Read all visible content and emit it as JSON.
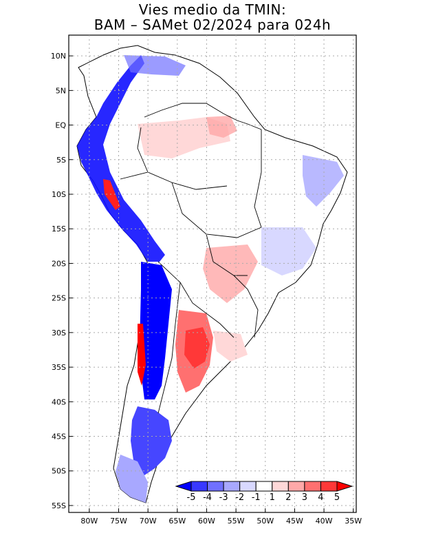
{
  "title_line1": "Vies medio da TMIN:",
  "title_line2": "BAM – SAMet 02/2024  para 024h",
  "lat_labels": [
    "10N",
    "5N",
    "EQ",
    "5S",
    "10S",
    "15S",
    "20S",
    "25S",
    "30S",
    "35S",
    "40S",
    "45S",
    "50S",
    "55S"
  ],
  "lon_labels": [
    "80W",
    "75W",
    "70W",
    "65W",
    "60W",
    "55W",
    "50W",
    "45W",
    "40W",
    "35W"
  ],
  "lat_values": [
    10,
    5,
    0,
    -5,
    -10,
    -15,
    -20,
    -25,
    -30,
    -35,
    -40,
    -45,
    -50,
    -55
  ],
  "lon_values": [
    -80,
    -75,
    -70,
    -65,
    -60,
    -55,
    -50,
    -45,
    -40,
    -35
  ],
  "map_extent": {
    "lon_min": -83.5,
    "lon_max": -34.5,
    "lat_min": -56,
    "lat_max": 13
  },
  "colorbar": {
    "labels": [
      "-5",
      "-4",
      "-3",
      "-2",
      "-1",
      "1",
      "2",
      "3",
      "4",
      "5"
    ],
    "colors": [
      "#0000ff",
      "#3838ff",
      "#7070ff",
      "#a8a8ff",
      "#d8d8ff",
      "#ffffff",
      "#ffd8d8",
      "#ffa8a8",
      "#ff7070",
      "#ff3838",
      "#ff0000"
    ]
  },
  "colors": {
    "frame": "#000000",
    "grid": "#aaaaaa",
    "coast": "#000000"
  }
}
